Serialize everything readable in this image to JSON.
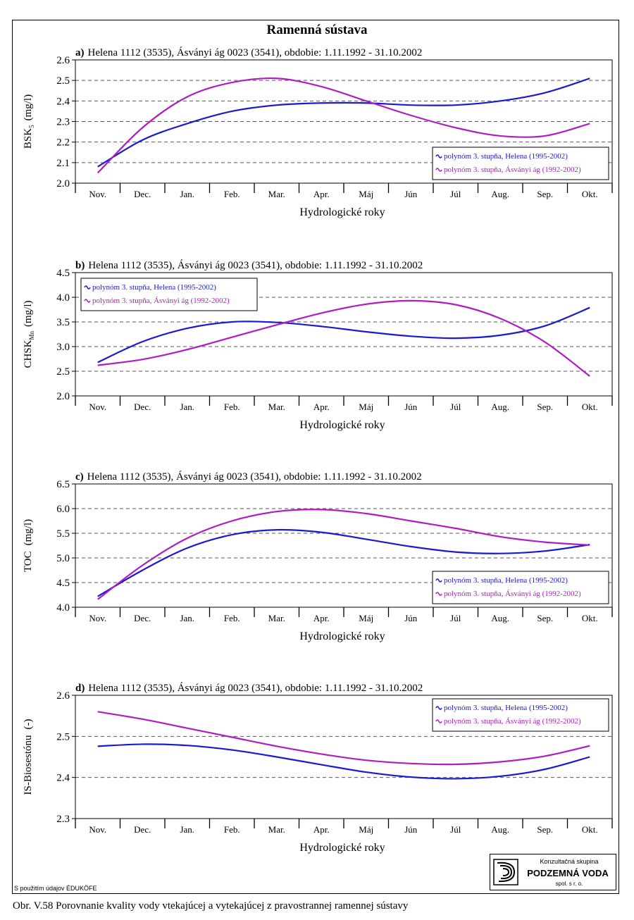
{
  "title": "Ramenná sústava",
  "credit": "S použitím údajov ÉDUKÖFE",
  "caption": "Obr. V.58 Porovnanie kvality vody vtekajúcej a vytekajúcej z pravostrannej ramennej sústavy",
  "logo": {
    "line1": "Konzultačná skupina",
    "line2": "PODZEMNÁ VODA",
    "line3": "spol. s r. o."
  },
  "colors": {
    "helena": "#1a1ad0",
    "asvanyi": "#b01cc0",
    "grid": "#555555"
  },
  "chart_data": [
    {
      "type": "line",
      "title_prefix": "a)",
      "title": "Helena 1112 (3535), Ásványi ág 0023 (3541), obdobie: 1.11.1992 - 31.10.2002",
      "ylabel": "BSK",
      "ylabel_sub": "5",
      "ylabel_unit": "(mg/l)",
      "xlabel": "Hydrologické roky",
      "categories": [
        "Nov.",
        "Dec.",
        "Jan.",
        "Feb.",
        "Mar.",
        "Apr.",
        "Máj",
        "Jún",
        "Júl",
        "Aug.",
        "Sep.",
        "Okt."
      ],
      "ylim": [
        2.0,
        2.6
      ],
      "yticks": [
        2.0,
        2.1,
        2.2,
        2.3,
        2.4,
        2.5,
        2.6
      ],
      "legend_position": "bottom-right",
      "grid": true,
      "series": [
        {
          "name": "polynóm 3. stupňa, Helena (1995-2002)",
          "color": "#1a1ad0",
          "values": [
            2.08,
            2.21,
            2.29,
            2.35,
            2.38,
            2.39,
            2.39,
            2.38,
            2.38,
            2.4,
            2.44,
            2.51
          ]
        },
        {
          "name": "polynóm 3. stupňa, Ásványi ág (1992-2002)",
          "color": "#b01cc0",
          "values": [
            2.05,
            2.27,
            2.42,
            2.49,
            2.51,
            2.47,
            2.4,
            2.33,
            2.27,
            2.23,
            2.23,
            2.29
          ]
        }
      ]
    },
    {
      "type": "line",
      "title_prefix": "b)",
      "title": "Helena 1112 (3535), Ásványi ág 0023 (3541), obdobie: 1.11.1992 - 31.10.2002",
      "ylabel": "CHSK",
      "ylabel_sub": "Mn",
      "ylabel_unit": "(mg/l)",
      "xlabel": "Hydrologické roky",
      "categories": [
        "Nov.",
        "Dec.",
        "Jan.",
        "Feb.",
        "Mar.",
        "Apr.",
        "Máj",
        "Jún",
        "Júl",
        "Aug.",
        "Sep.",
        "Okt."
      ],
      "ylim": [
        2.0,
        4.5
      ],
      "yticks": [
        2.0,
        2.5,
        3.0,
        3.5,
        4.0,
        4.5
      ],
      "legend_position": "top-left",
      "grid": true,
      "series": [
        {
          "name": "polynóm 3. stupňa, Helena (1995-2002)",
          "color": "#1a1ad0",
          "values": [
            2.68,
            3.1,
            3.37,
            3.5,
            3.49,
            3.41,
            3.3,
            3.21,
            3.17,
            3.23,
            3.42,
            3.79
          ]
        },
        {
          "name": "polynóm 3. stupňa, Ásványi ág (1992-2002)",
          "color": "#b01cc0",
          "values": [
            2.62,
            2.74,
            2.94,
            3.19,
            3.44,
            3.68,
            3.86,
            3.93,
            3.85,
            3.57,
            3.09,
            2.4
          ]
        }
      ]
    },
    {
      "type": "line",
      "title_prefix": "c)",
      "title": "Helena 1112 (3535), Ásványi ág 0023 (3541), obdobie: 1.11.1992 - 31.10.2002",
      "ylabel": "TOC",
      "ylabel_sub": "",
      "ylabel_unit": "(mg/l)",
      "xlabel": "Hydrologické roky",
      "categories": [
        "Nov.",
        "Dec.",
        "Jan.",
        "Feb.",
        "Mar.",
        "Apr.",
        "Máj",
        "Jún",
        "Júl",
        "Aug.",
        "Sep.",
        "Okt."
      ],
      "ylim": [
        4.0,
        6.5
      ],
      "yticks": [
        4.0,
        4.5,
        5.0,
        5.5,
        6.0,
        6.5
      ],
      "legend_position": "bottom-right",
      "grid": true,
      "series": [
        {
          "name": "polynóm 3. stupňa, Helena (1995-2002)",
          "color": "#1a1ad0",
          "values": [
            4.22,
            4.75,
            5.2,
            5.47,
            5.57,
            5.52,
            5.38,
            5.23,
            5.12,
            5.09,
            5.14,
            5.27
          ]
        },
        {
          "name": "polynóm 3. stupňa, Ásványi ág (1992-2002)",
          "color": "#b01cc0",
          "values": [
            4.16,
            4.85,
            5.4,
            5.75,
            5.94,
            5.98,
            5.9,
            5.75,
            5.6,
            5.43,
            5.32,
            5.26
          ]
        }
      ]
    },
    {
      "type": "line",
      "title_prefix": "d)",
      "title": "Helena 1112 (3535), Ásványi ág 0023 (3541), obdobie: 1.11.1992 - 31.10.2002",
      "ylabel": "IS-Biosestónu",
      "ylabel_sub": "",
      "ylabel_unit": "(-)",
      "xlabel": "Hydrologické roky",
      "categories": [
        "Nov.",
        "Dec.",
        "Jan.",
        "Feb.",
        "Mar.",
        "Apr.",
        "Máj",
        "Jún",
        "Júl",
        "Aug.",
        "Sep.",
        "Okt."
      ],
      "ylim": [
        2.3,
        2.6
      ],
      "yticks": [
        2.3,
        2.4,
        2.5,
        2.6
      ],
      "legend_position": "top-right",
      "grid": true,
      "series": [
        {
          "name": "polynóm 3. stupňa, Helena (1995-2002)",
          "color": "#1a1ad0",
          "values": [
            2.476,
            2.481,
            2.478,
            2.467,
            2.45,
            2.431,
            2.413,
            2.401,
            2.397,
            2.403,
            2.42,
            2.45
          ]
        },
        {
          "name": "polynóm 3. stupňa, Ásványi ág (1992-2002)",
          "color": "#b01cc0",
          "values": [
            2.56,
            2.542,
            2.52,
            2.498,
            2.476,
            2.457,
            2.442,
            2.434,
            2.432,
            2.438,
            2.452,
            2.477
          ]
        }
      ]
    }
  ]
}
